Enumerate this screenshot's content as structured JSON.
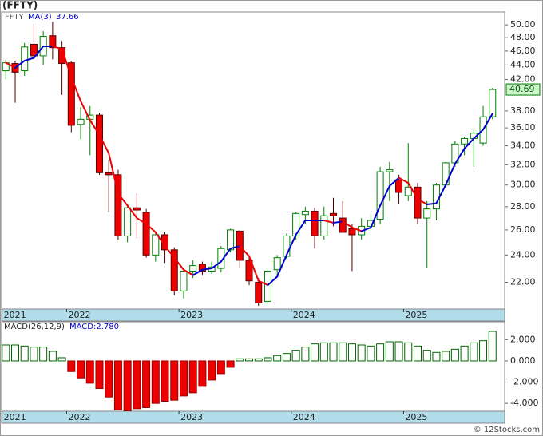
{
  "chart_data": [
    {
      "type": "candlestick",
      "title": "(FFTY)",
      "name": "FFTY",
      "open": [
        43.2,
        44.2,
        43.2,
        47.0,
        45.3,
        48.3,
        46.5,
        44.3,
        36.4,
        37.0,
        37.5,
        31.2,
        31.0,
        25.5,
        27.9,
        27.5,
        24.0,
        25.6,
        24.4,
        21.4,
        22.8,
        23.3,
        22.8,
        23.0,
        24.4,
        25.9,
        23.6,
        22.0,
        20.7,
        22.9,
        23.9,
        25.5,
        27.3,
        27.6,
        25.5,
        27.4,
        27.0,
        26.1,
        25.6,
        26.3,
        26.9,
        31.3,
        30.5,
        29.0,
        29.8,
        27.0,
        27.8,
        30.0,
        32.2,
        34.2,
        34.8,
        34.3,
        37.3
      ],
      "high": [
        44.8,
        44.6,
        47.2,
        50.2,
        49.0,
        50.5,
        47.5,
        44.5,
        38.5,
        38.6,
        37.8,
        32.5,
        31.5,
        28.0,
        29.2,
        27.8,
        25.8,
        25.8,
        24.6,
        23.0,
        23.6,
        23.5,
        23.5,
        24.7,
        26.1,
        26.0,
        24.0,
        22.3,
        23.0,
        24.0,
        25.7,
        27.5,
        28.0,
        27.9,
        28.0,
        28.8,
        28.5,
        26.5,
        27.0,
        27.4,
        31.8,
        32.3,
        31.0,
        34.3,
        30.2,
        28.5,
        30.2,
        32.3,
        34.5,
        35.0,
        35.8,
        38.6,
        40.9
      ],
      "low": [
        42.0,
        39.0,
        42.5,
        44.5,
        44.0,
        44.8,
        40.0,
        35.5,
        34.7,
        33.0,
        31.0,
        27.5,
        25.2,
        25.0,
        25.3,
        23.8,
        23.5,
        23.4,
        21.1,
        20.9,
        22.3,
        22.5,
        22.6,
        22.7,
        24.2,
        23.0,
        21.8,
        20.4,
        20.5,
        22.5,
        23.7,
        25.2,
        26.5,
        24.5,
        25.2,
        26.3,
        25.8,
        22.8,
        25.2,
        26.0,
        26.5,
        28.5,
        28.2,
        28.5,
        26.5,
        23.0,
        26.8,
        29.8,
        31.8,
        33.0,
        31.8,
        34.0,
        37.0
      ],
      "close": [
        44.3,
        43.0,
        46.6,
        45.3,
        48.2,
        46.5,
        44.2,
        36.3,
        37.0,
        37.5,
        31.2,
        31.0,
        25.5,
        27.9,
        27.7,
        24.0,
        25.6,
        24.4,
        21.4,
        22.8,
        23.2,
        22.8,
        23.1,
        24.5,
        26.0,
        23.6,
        22.1,
        20.6,
        22.8,
        23.8,
        25.5,
        27.4,
        27.6,
        25.5,
        27.2,
        27.2,
        25.8,
        25.6,
        26.3,
        26.8,
        31.3,
        31.5,
        29.3,
        29.8,
        27.0,
        27.8,
        30.0,
        32.2,
        34.2,
        34.8,
        35.4,
        37.3,
        40.69
      ],
      "up_color": "#008000",
      "down_color": "#ee0000",
      "ma": {
        "name": "MA(3)",
        "values": [
          44.3,
          43.6,
          44.6,
          45.0,
          46.7,
          46.7,
          46.3,
          42.3,
          39.2,
          36.9,
          35.2,
          33.2,
          29.2,
          28.1,
          27.0,
          26.5,
          25.8,
          24.7,
          23.8,
          22.9,
          22.5,
          22.9,
          23.0,
          23.5,
          24.5,
          24.7,
          23.9,
          22.1,
          21.8,
          22.4,
          24.0,
          25.6,
          26.8,
          26.8,
          26.8,
          26.6,
          26.7,
          26.2,
          25.9,
          26.2,
          28.1,
          29.9,
          30.7,
          30.2,
          28.7,
          28.2,
          28.3,
          30.0,
          32.1,
          33.7,
          34.8,
          35.8,
          37.66
        ],
        "up_color": "#0000cc",
        "down_color": "#ee0000"
      },
      "log_scale": true,
      "xlim": [
        -0.45,
        53.3
      ],
      "xticks": [
        {
          "value": -0.4,
          "label": "2021"
        },
        {
          "value": 6.5,
          "label": "2022"
        },
        {
          "value": 18.5,
          "label": "2023"
        },
        {
          "value": 30.5,
          "label": "2024"
        },
        {
          "value": 42.5,
          "label": "2025"
        }
      ],
      "ylim": [
        20.2,
        52.1
      ],
      "yticks": [
        {
          "value": 22,
          "label": "22.00"
        },
        {
          "value": 24,
          "label": "24.00"
        },
        {
          "value": 26,
          "label": "26.00"
        },
        {
          "value": 28,
          "label": "28.00"
        },
        {
          "value": 30,
          "label": "30.00"
        },
        {
          "value": 32,
          "label": "32.00"
        },
        {
          "value": 34,
          "label": "34.00"
        },
        {
          "value": 36,
          "label": "36.00"
        },
        {
          "value": 38,
          "label": "38.00"
        },
        {
          "value": 42,
          "label": "42.00"
        },
        {
          "value": 44,
          "label": "44.00"
        },
        {
          "value": 46,
          "label": "46.00"
        },
        {
          "value": 48,
          "label": "48.00"
        },
        {
          "value": 50,
          "label": "50.00"
        }
      ]
    },
    {
      "type": "bar",
      "name": "MACD(26,12,9)",
      "current_label": "MACD:2.780",
      "values": [
        1.5,
        1.5,
        1.4,
        1.3,
        1.3,
        0.9,
        0.3,
        -1.0,
        -1.6,
        -2.1,
        -2.6,
        -3.4,
        -4.6,
        -4.7,
        -4.5,
        -4.4,
        -4.0,
        -3.8,
        -3.7,
        -3.3,
        -3.0,
        -2.4,
        -1.8,
        -1.2,
        -0.6,
        0.2,
        0.2,
        0.2,
        0.3,
        0.5,
        0.7,
        1.0,
        1.3,
        1.6,
        1.7,
        1.7,
        1.7,
        1.6,
        1.5,
        1.4,
        1.6,
        1.8,
        1.8,
        1.7,
        1.4,
        1.0,
        0.8,
        0.9,
        1.1,
        1.4,
        1.7,
        1.9,
        2.78
      ],
      "up_color": "#006600",
      "down_color": "#ee0000",
      "xlim": [
        -0.45,
        53.3
      ],
      "xticks": [
        {
          "value": -0.4,
          "label": "2021"
        },
        {
          "value": 6.5,
          "label": "2022"
        },
        {
          "value": 18.5,
          "label": "2023"
        },
        {
          "value": 30.5,
          "label": "2024"
        },
        {
          "value": 42.5,
          "label": "2025"
        }
      ],
      "ylim": [
        -4.74,
        3.68
      ],
      "yticks": [
        {
          "value": 2,
          "label": "2.000"
        },
        {
          "value": 0,
          "label": "0.000"
        },
        {
          "value": -2,
          "label": "-2.000"
        },
        {
          "value": -4,
          "label": "-4.000"
        }
      ]
    }
  ],
  "watermark": "© 12Stocks.com"
}
